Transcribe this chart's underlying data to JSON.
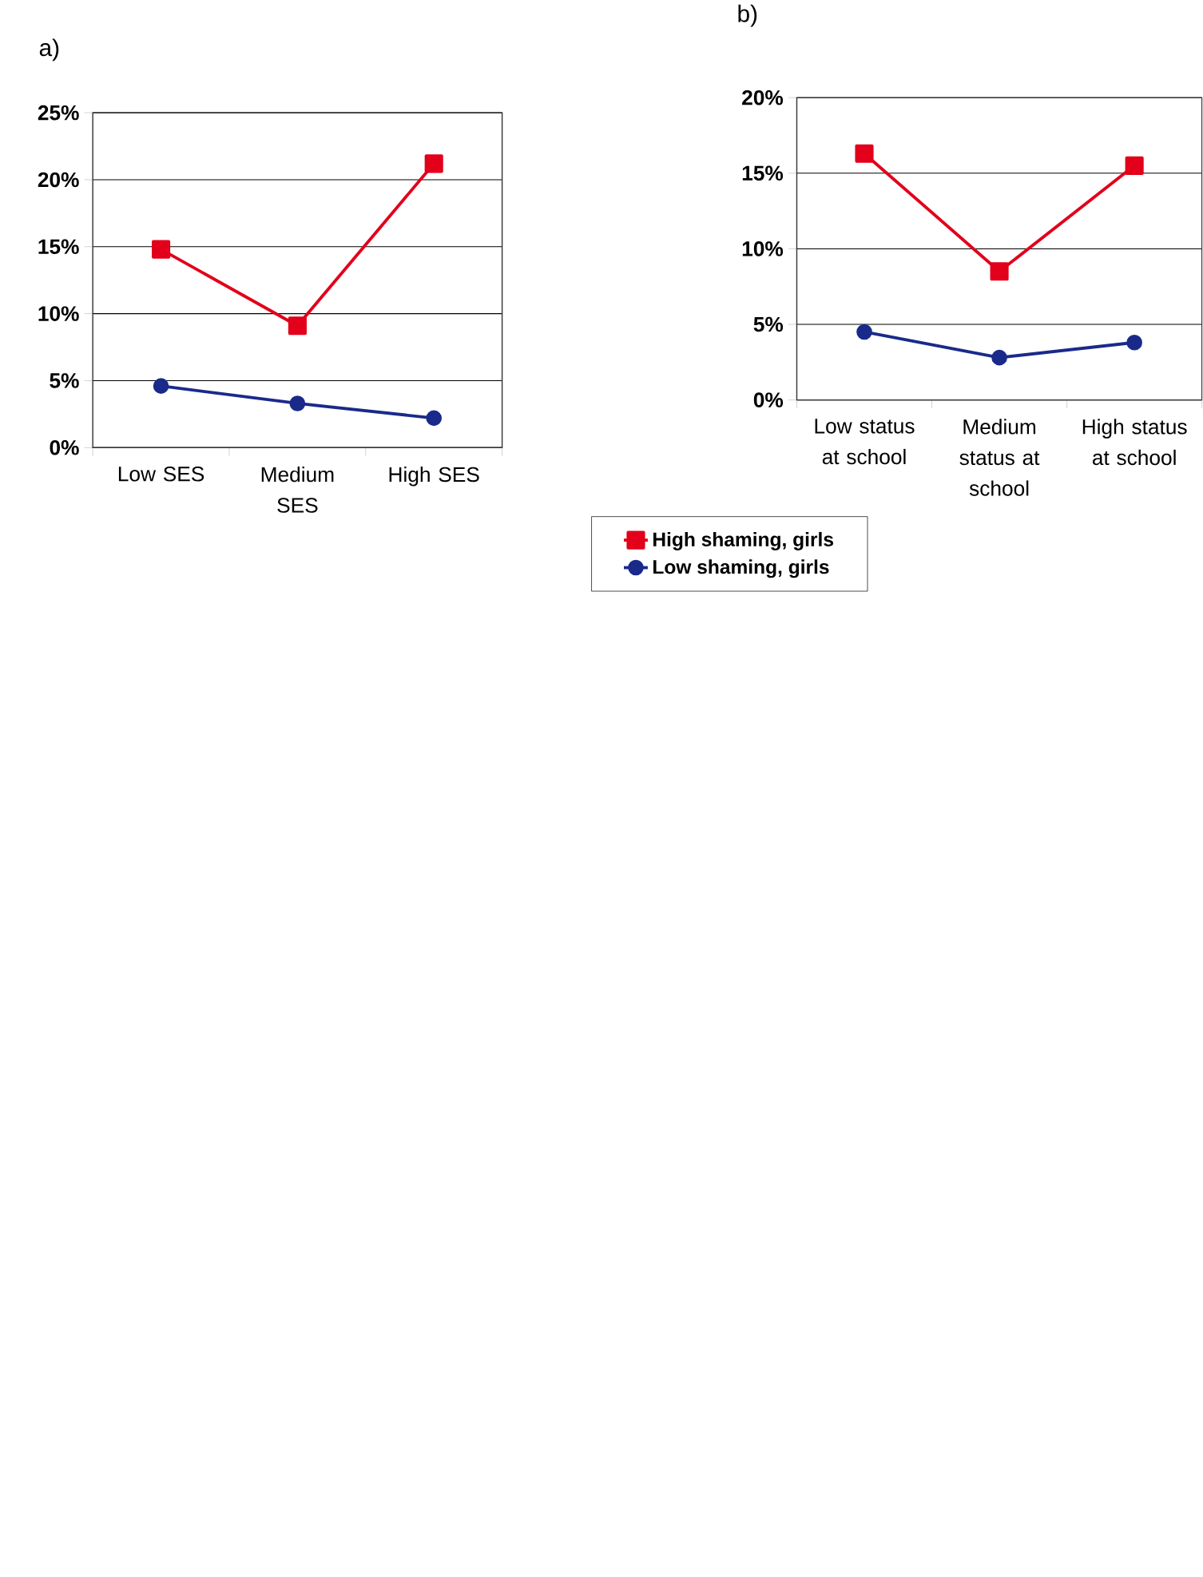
{
  "chart_data": [
    {
      "type": "line",
      "title": "a)",
      "categories": [
        "Low SES",
        "Medium SES",
        "High SES"
      ],
      "series": [
        {
          "color": "#e2001a",
          "marker": "square",
          "values": [
            14.8,
            9.1,
            21.2
          ]
        },
        {
          "color": "#1a2a8a",
          "marker": "circle",
          "values": [
            4.6,
            3.3,
            2.2
          ]
        }
      ],
      "ylim": [
        0,
        25
      ],
      "yticks": [
        {
          "value": 0,
          "label": "0%"
        },
        {
          "value": 5,
          "label": "5%"
        },
        {
          "value": 10,
          "label": "10%"
        },
        {
          "value": 15,
          "label": "15%"
        },
        {
          "value": 20,
          "label": "20%"
        },
        {
          "value": 25,
          "label": "25%"
        }
      ],
      "grid": "y",
      "legend": false
    },
    {
      "type": "line",
      "title": "b)",
      "categories": [
        "Low status at school",
        "Medium status at school",
        "High status at school"
      ],
      "series": [
        {
          "name": "High shaming, girls",
          "color": "#e2001a",
          "marker": "square",
          "values": [
            16.3,
            8.5,
            15.5
          ]
        },
        {
          "name": "Low shaming, girls",
          "color": "#1a2a8a",
          "marker": "circle",
          "values": [
            4.5,
            2.8,
            3.8
          ]
        }
      ],
      "ylim": [
        0,
        20
      ],
      "yticks": [
        {
          "value": 0,
          "label": "0%"
        },
        {
          "value": 5,
          "label": "5%"
        },
        {
          "value": 10,
          "label": "10%"
        },
        {
          "value": 15,
          "label": "15%"
        },
        {
          "value": 20,
          "label": "20%"
        }
      ],
      "grid": "y",
      "legend": "bottom"
    }
  ]
}
